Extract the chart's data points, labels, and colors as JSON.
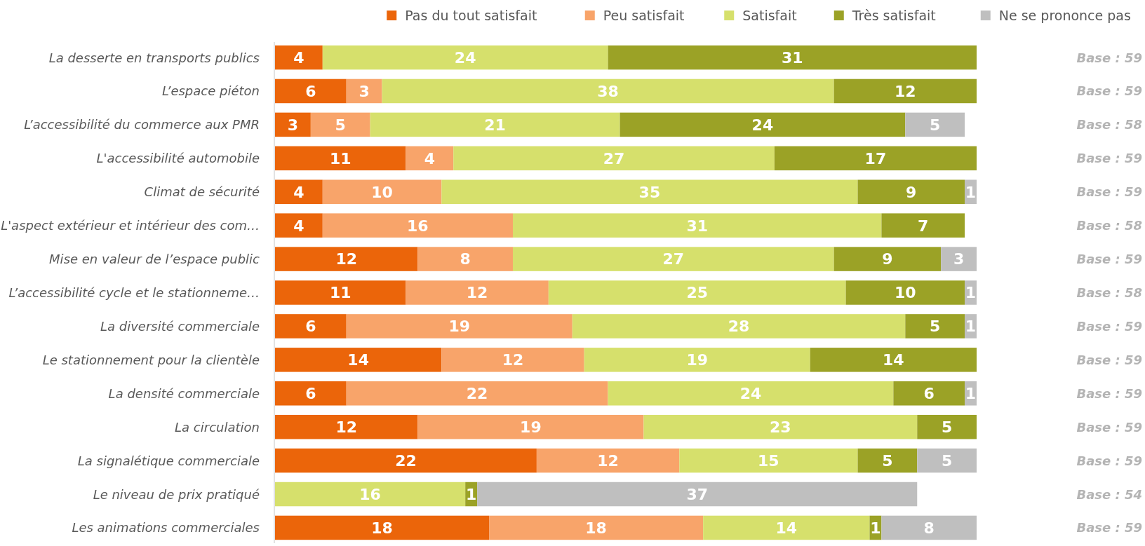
{
  "chart_data": {
    "type": "bar",
    "orientation": "horizontal",
    "stacked": true,
    "data_labels": true,
    "tick_labels": "y",
    "legend": "top",
    "categories": [
      "La desserte en transports publics",
      "L’espace piéton",
      "L’accessibilité du commerce aux PMR",
      "L'accessibilité automobile",
      "Climat de sécurité",
      "L'aspect extérieur et intérieur des com…",
      "Mise en valeur de l’espace public",
      "L’accessibilité cycle et le stationneme…",
      "La diversité commerciale",
      "Le stationnement pour la clientèle",
      "La densité commerciale",
      "La circulation",
      "La signalétique commerciale",
      "Le niveau de prix pratiqué",
      "Les animations commerciales"
    ],
    "series": [
      {
        "name": "Pas du tout satisfait",
        "color": "#eb650a",
        "values": [
          4,
          6,
          3,
          11,
          4,
          4,
          12,
          11,
          6,
          14,
          6,
          12,
          22,
          null,
          18
        ]
      },
      {
        "name": "Peu satisfait",
        "color": "#f8a46a",
        "values": [
          null,
          3,
          5,
          4,
          10,
          16,
          8,
          12,
          19,
          12,
          22,
          19,
          12,
          null,
          18
        ]
      },
      {
        "name": "Satisfait",
        "color": "#d6e06c",
        "values": [
          24,
          38,
          21,
          27,
          35,
          31,
          27,
          25,
          28,
          19,
          24,
          23,
          15,
          16,
          14
        ]
      },
      {
        "name": "Très satisfait",
        "color": "#9ba226",
        "values": [
          31,
          12,
          24,
          17,
          9,
          7,
          9,
          10,
          5,
          14,
          6,
          5,
          5,
          1,
          1
        ]
      },
      {
        "name": "Ne se prononce pas",
        "color": "#bfbfbf",
        "values": [
          null,
          null,
          5,
          null,
          1,
          null,
          3,
          1,
          1,
          null,
          1,
          null,
          5,
          37,
          8
        ]
      }
    ],
    "annotations": [
      "Base : 59",
      "Base : 59",
      "Base : 58",
      "Base : 59",
      "Base : 59",
      "Base : 58",
      "Base : 59",
      "Base : 58",
      "Base : 59",
      "Base : 59",
      "Base : 59",
      "Base : 59",
      "Base : 59",
      "Base : 54",
      "Base : 59"
    ]
  }
}
